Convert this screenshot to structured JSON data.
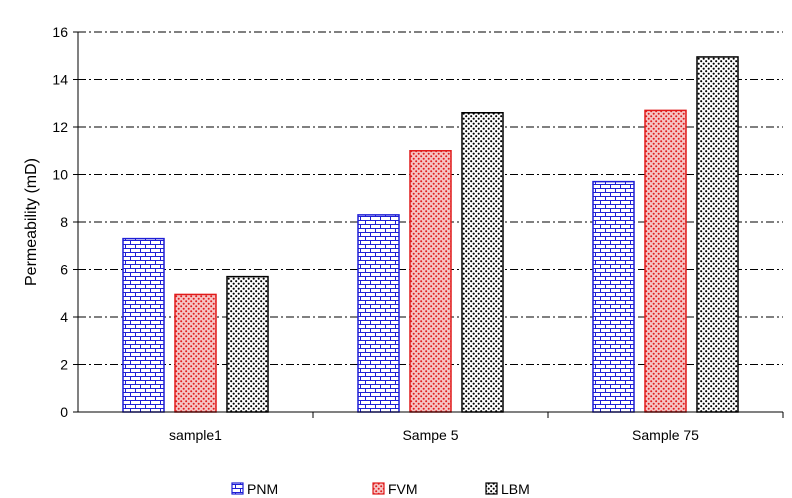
{
  "chart_data": {
    "type": "bar",
    "title": "",
    "xlabel": "",
    "ylabel": "Permeability (mD)",
    "ylim": [
      0,
      16
    ],
    "yticks": [
      0,
      2,
      4,
      6,
      8,
      10,
      12,
      14,
      16
    ],
    "grid": true,
    "legend_position": "bottom",
    "categories": [
      "sample1",
      "Sampe 5",
      "Sample 75"
    ],
    "series": [
      {
        "name": "PNM",
        "values": [
          7.3,
          8.3,
          9.7
        ],
        "color": "#1f1fd6",
        "pattern": "brick"
      },
      {
        "name": "FVM",
        "values": [
          4.95,
          11.0,
          12.7
        ],
        "color": "#e01b1b",
        "pattern": "dots-red"
      },
      {
        "name": "LBM",
        "values": [
          5.7,
          12.6,
          14.95
        ],
        "color": "#000000",
        "pattern": "dots-black"
      }
    ]
  }
}
